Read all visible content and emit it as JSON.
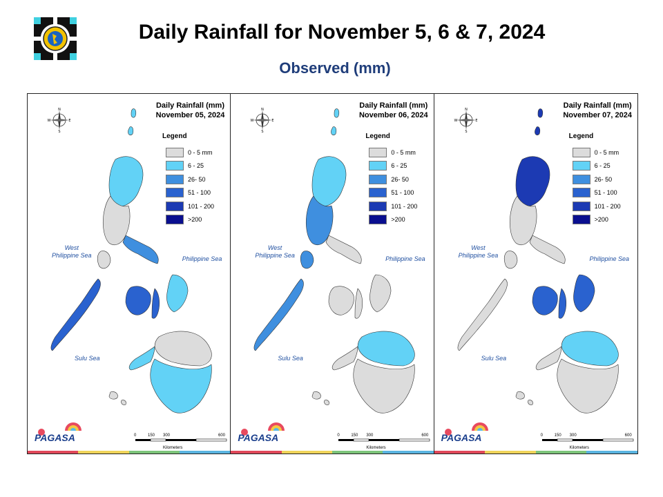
{
  "header": {
    "title": "Daily Rainfall for November 5, 6 & 7, 2024",
    "subtitle": "Observed (mm)"
  },
  "legend": {
    "title": "Legend",
    "classes": [
      {
        "label": "0 - 5 mm",
        "color": "#dcdcdc"
      },
      {
        "label": "6 - 25",
        "color": "#62d2f6"
      },
      {
        "label": "26- 50",
        "color": "#3f8fdf"
      },
      {
        "label": "51 - 100",
        "color": "#2a62cf"
      },
      {
        "label": "101 - 200",
        "color": "#1c3ab3"
      },
      {
        "label": ">200",
        "color": "#0a0f8f"
      }
    ]
  },
  "labels": {
    "west_sea_line1": "West",
    "west_sea_line2": "Philippine Sea",
    "philippine_sea": "Philippine Sea",
    "sulu_sea": "Sulu Sea",
    "scale_unit": "Kilometers",
    "scale_ticks": [
      "0",
      "150",
      "300",
      "600"
    ],
    "compass_n": "N",
    "compass_s": "S",
    "compass_e": "E",
    "compass_w": "W",
    "brand": "PAGASA"
  },
  "maps": [
    {
      "title_line1": "Daily Rainfall (mm)",
      "title_line2": "November 05, 2024",
      "luzon_north": "#62d2f6",
      "luzon_central": "#dcdcdc",
      "bicol": "#3f8fdf",
      "palawan": "#2a62cf",
      "visayas_east": "#62d2f6",
      "visayas_west": "#2a62cf",
      "mindanao_north": "#dcdcdc",
      "mindanao_south": "#62d2f6"
    },
    {
      "title_line1": "Daily Rainfall (mm)",
      "title_line2": "November 06, 2024",
      "luzon_north": "#62d2f6",
      "luzon_central": "#3f8fdf",
      "bicol": "#dcdcdc",
      "palawan": "#3f8fdf",
      "visayas_east": "#dcdcdc",
      "visayas_west": "#dcdcdc",
      "mindanao_north": "#62d2f6",
      "mindanao_south": "#dcdcdc"
    },
    {
      "title_line1": "Daily Rainfall (mm)",
      "title_line2": "November 07, 2024",
      "luzon_north": "#1c3ab3",
      "luzon_central": "#dcdcdc",
      "bicol": "#dcdcdc",
      "palawan": "#dcdcdc",
      "visayas_east": "#2a62cf",
      "visayas_west": "#2a62cf",
      "mindanao_north": "#62d2f6",
      "mindanao_south": "#dcdcdc"
    }
  ],
  "stripe_colors": [
    "#e0485a",
    "#f0d45a",
    "#7cc47a",
    "#5ab4e0"
  ]
}
